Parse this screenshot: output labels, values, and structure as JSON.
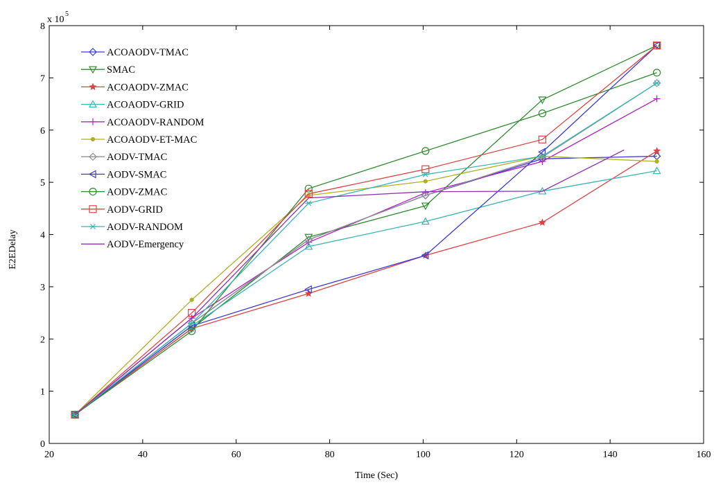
{
  "chart_data": {
    "type": "line",
    "title": "",
    "xlabel": "Time (Sec)",
    "ylabel": "E2EDelay",
    "y_scale_label": "x 10",
    "y_scale_exponent": "5",
    "xlim": [
      20,
      160
    ],
    "ylim": [
      0,
      8
    ],
    "x_ticks": [
      20,
      40,
      60,
      80,
      100,
      120,
      140,
      160
    ],
    "y_ticks": [
      0,
      1,
      2,
      3,
      4,
      5,
      6,
      7,
      8
    ],
    "grid": false,
    "legend_position": "top-left",
    "series": [
      {
        "name": "ACOAODV-TMAC",
        "color": "#3a3ad6",
        "marker": "diamond",
        "x": [
          25.5,
          50.5,
          75.5,
          100.5,
          125.5,
          150
        ],
        "y": [
          0.55,
          2.3,
          3.9,
          4.75,
          5.45,
          5.5
        ]
      },
      {
        "name": "SMAC",
        "color": "#2e8b2e",
        "marker": "triangle-down",
        "x": [
          25.5,
          50.5,
          75.5,
          100.5,
          125.5,
          150
        ],
        "y": [
          0.55,
          2.2,
          3.95,
          4.55,
          6.58,
          7.62
        ]
      },
      {
        "name": "ACOAODV-ZMAC",
        "color": "#e04040",
        "marker": "star",
        "x": [
          25.5,
          50.5,
          75.5,
          100.5,
          125.5,
          150
        ],
        "y": [
          0.55,
          2.2,
          2.87,
          3.6,
          4.23,
          5.6
        ]
      },
      {
        "name": "ACOAODV-GRID",
        "color": "#3ab5b5",
        "marker": "triangle-up",
        "x": [
          25.5,
          50.5,
          75.5,
          100.5,
          125.5,
          150
        ],
        "y": [
          0.55,
          2.25,
          3.77,
          4.25,
          4.83,
          5.22
        ]
      },
      {
        "name": "ACOAODV-RANDOM",
        "color": "#b020c0",
        "marker": "plus",
        "x": [
          25.5,
          50.5,
          75.5,
          100.5,
          125.5,
          150
        ],
        "y": [
          0.55,
          2.4,
          3.85,
          4.8,
          5.4,
          6.6
        ]
      },
      {
        "name": "ACOAODV-ET-MAC",
        "color": "#b0b020",
        "marker": "dot",
        "x": [
          25.5,
          50.5,
          75.5,
          100.5,
          125.5,
          150
        ],
        "y": [
          0.55,
          2.75,
          4.75,
          5.02,
          5.5,
          5.4
        ]
      },
      {
        "name": "AODV-TMAC",
        "color": "#909090",
        "marker": "diamond",
        "x": [
          25.5,
          50.5,
          75.5,
          100.5,
          125.5,
          150
        ],
        "y": [
          0.55,
          2.3,
          3.9,
          4.75,
          5.48,
          6.9
        ]
      },
      {
        "name": "AODV-SMAC",
        "color": "#3a3ad6",
        "marker": "triangle-left",
        "x": [
          25.5,
          50.5,
          75.5,
          100.5,
          125.5,
          150
        ],
        "y": [
          0.55,
          2.25,
          2.95,
          3.6,
          5.58,
          7.62
        ]
      },
      {
        "name": "AODV-ZMAC",
        "color": "#2e8b2e",
        "marker": "circle",
        "x": [
          25.5,
          50.5,
          75.5,
          100.5,
          125.5,
          150
        ],
        "y": [
          0.55,
          2.15,
          4.88,
          5.6,
          6.32,
          7.1
        ]
      },
      {
        "name": "AODV-GRID",
        "color": "#e04040",
        "marker": "square",
        "x": [
          25.5,
          50.5,
          75.5,
          100.5,
          125.5,
          150
        ],
        "y": [
          0.55,
          2.5,
          4.78,
          5.25,
          5.82,
          7.62
        ]
      },
      {
        "name": "AODV-RANDOM",
        "color": "#3ab5b5",
        "marker": "asterisk",
        "x": [
          25.5,
          50.5,
          75.5,
          100.5,
          125.5,
          150
        ],
        "y": [
          0.55,
          2.3,
          4.6,
          5.15,
          5.5,
          6.9
        ]
      },
      {
        "name": "AODV-Emergency",
        "color": "#9030b0",
        "marker": "none",
        "x": [
          25.5,
          50.5,
          75.5,
          100.5,
          125.5,
          143
        ],
        "y": [
          0.55,
          2.4,
          4.7,
          4.82,
          4.83,
          5.62
        ]
      }
    ]
  }
}
